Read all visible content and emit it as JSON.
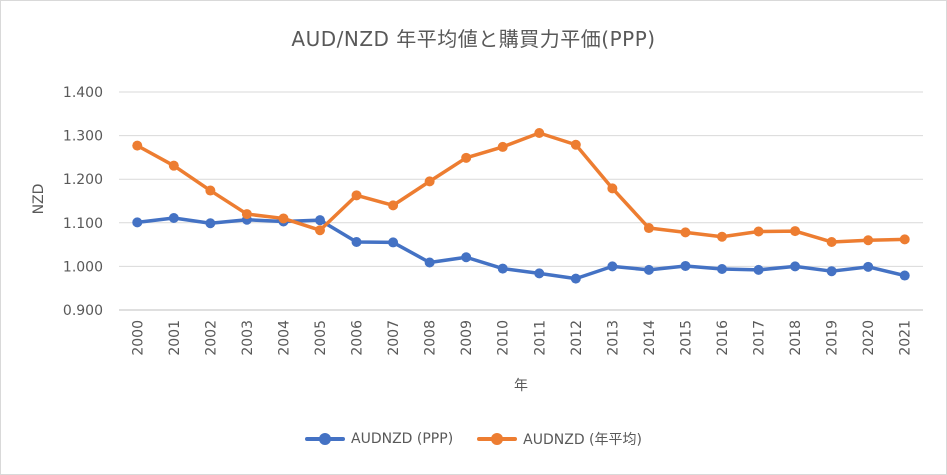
{
  "chart_data": {
    "type": "line",
    "title": "AUD/NZD 年平均値と購買力平価(PPP)",
    "xlabel": "年",
    "ylabel": "NZD",
    "ylim": [
      0.9,
      1.4
    ],
    "y_ticks": [
      "0.900",
      "1.000",
      "1.100",
      "1.200",
      "1.300",
      "1.400"
    ],
    "categories": [
      "2000",
      "2001",
      "2002",
      "2003",
      "2004",
      "2005",
      "2006",
      "2007",
      "2008",
      "2009",
      "2010",
      "2011",
      "2012",
      "2013",
      "2014",
      "2015",
      "2016",
      "2017",
      "2018",
      "2019",
      "2020",
      "2021"
    ],
    "grid": true,
    "legend_position": "bottom",
    "series": [
      {
        "name": "AUDNZD (PPP)",
        "color": "#4472c4",
        "values": [
          1.101,
          1.111,
          1.099,
          1.107,
          1.103,
          1.106,
          1.056,
          1.055,
          1.009,
          1.021,
          0.995,
          0.984,
          0.972,
          1.0,
          0.992,
          1.001,
          0.994,
          0.992,
          1.0,
          0.989,
          0.999,
          0.979
        ]
      },
      {
        "name": "AUDNZD (年平均)",
        "color": "#ed7d31",
        "values": [
          1.277,
          1.231,
          1.174,
          1.12,
          1.11,
          1.083,
          1.163,
          1.14,
          1.195,
          1.249,
          1.274,
          1.306,
          1.279,
          1.179,
          1.088,
          1.078,
          1.068,
          1.08,
          1.081,
          1.056,
          1.06,
          1.062
        ]
      }
    ]
  }
}
